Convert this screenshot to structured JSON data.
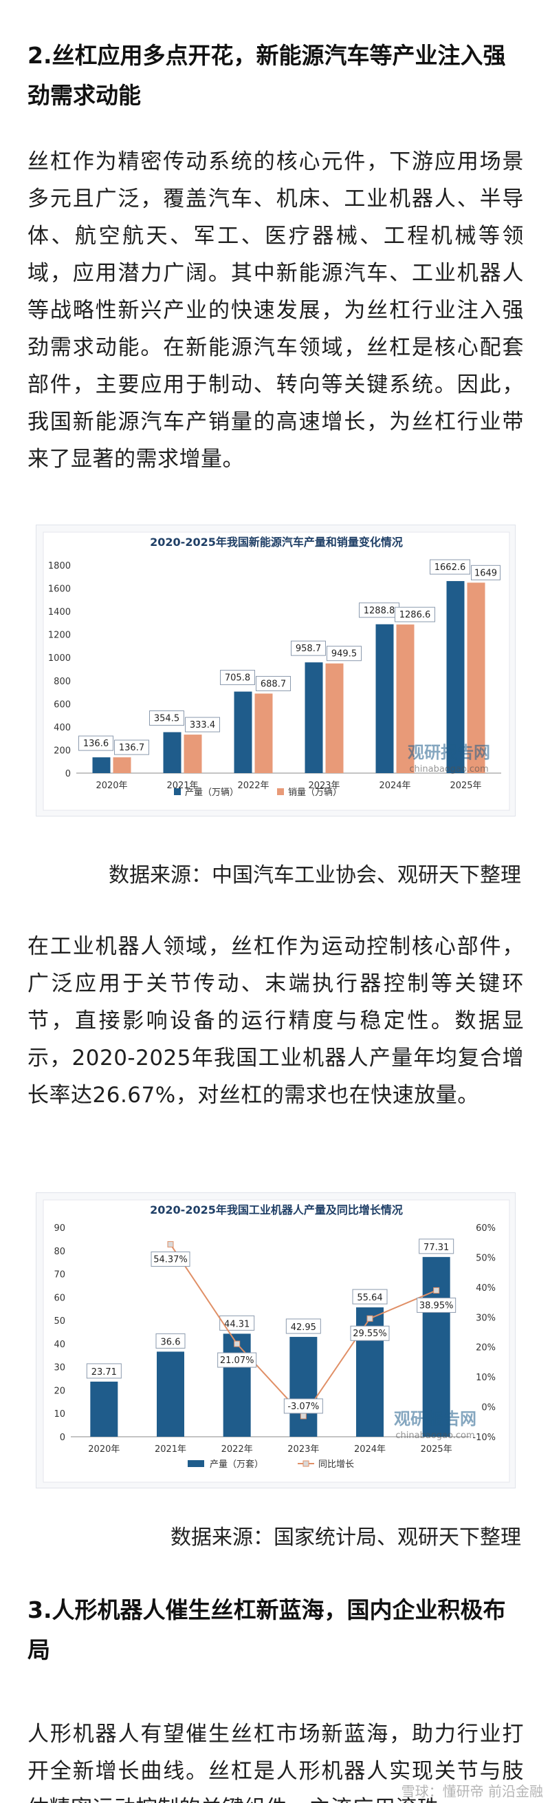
{
  "section2": {
    "heading": "2.丝杠应用多点开花，新能源汽车等产业注入强劲需求动能",
    "para1": "丝杠作为精密传动系统的核心元件，下游应用场景多元且广泛，覆盖汽车、机床、工业机器人、半导体、航空航天、军工、医疗器械、工程机械等领域，应用潜力广阔。其中新能源汽车、工业机器人等战略性新兴产业的快速发展，为丝杠行业注入强劲需求动能。在新能源汽车领域，丝杠是核心配套部件，主要应用于制动、转向等关键系统。因此，我国新能源汽车产销量的高速增长，为丝杠行业带来了显著的需求增量。",
    "source1": "数据来源：中国汽车工业协会、观研天下整理",
    "para2": "在工业机器人领域，丝杠作为运动控制核心部件，广泛应用于关节传动、末端执行器控制等关键环节，直接影响设备的运行精度与稳定性。数据显示，2020-2025年我国工业机器人产量年均复合增长率达26.67%，对丝杠的需求也在快速放量。",
    "source2": "数据来源：国家统计局、观研天下整理"
  },
  "section3": {
    "heading": "3.人形机器人催生丝杠新蓝海，国内企业积极布局",
    "para1": "人形机器人有望催生丝杠市场新蓝海，助力行业打开全新增长曲线。丝杠是人形机器人实现关节与肢体精密运动控制的关键组件，主流应用滚珠"
  },
  "watermark": {
    "brand": "观研报告网",
    "domain": "chinabaogao.com",
    "footer": "雪球：懂研帝 前沿金融"
  },
  "colors": {
    "primary": "#1f5c8b",
    "secondary": "#e89a78",
    "line": "#e08f66"
  },
  "chart_data": [
    {
      "type": "bar",
      "title": "2020-2025年我国新能源汽车产量和销量变化情况",
      "categories": [
        "2020年",
        "2021年",
        "2022年",
        "2023年",
        "2024年",
        "2025年"
      ],
      "series": [
        {
          "name": "产量（万辆）",
          "values": [
            136.6,
            354.5,
            705.8,
            958.7,
            1288.8,
            1662.6
          ]
        },
        {
          "name": "销量（万辆）",
          "values": [
            136.7,
            333.4,
            688.7,
            949.5,
            1286.6,
            1649
          ]
        }
      ],
      "value_labels": [
        [
          "136.6",
          "354.5",
          "705.8",
          "958.7",
          "1288.8",
          "1662.6"
        ],
        [
          "136.7",
          "333.4",
          "688.7",
          "949.5",
          "1286.6",
          "1649"
        ]
      ],
      "yticks": [
        "0",
        "200",
        "400",
        "600",
        "800",
        "1000",
        "1200",
        "1400",
        "1600",
        "1800"
      ],
      "ylim": [
        0,
        1800
      ],
      "grid": false,
      "legend": "bottom-center"
    },
    {
      "type": "bar",
      "title": "2020-2025年我国工业机器人产量及同比增长情况",
      "categories": [
        "2020年",
        "2021年",
        "2022年",
        "2023年",
        "2024年",
        "2025年"
      ],
      "series": [
        {
          "name": "产量（万套）",
          "values": [
            23.71,
            36.6,
            44.31,
            42.95,
            55.64,
            77.31
          ],
          "kind": "bar"
        },
        {
          "name": "同比增长",
          "values": [
            null,
            54.37,
            21.07,
            -3.07,
            29.55,
            38.95
          ],
          "kind": "line",
          "axis": "right"
        }
      ],
      "bar_labels": [
        "23.71",
        "36.6",
        "44.31",
        "42.95",
        "55.64",
        "77.31"
      ],
      "line_labels": [
        "",
        "54.37%",
        "21.07%",
        "-3.07%",
        "29.55%",
        "38.95%"
      ],
      "yticks_left": [
        "0",
        "10",
        "20",
        "30",
        "40",
        "50",
        "60",
        "70",
        "80",
        "90"
      ],
      "ylim_left": [
        0,
        90
      ],
      "yticks_right": [
        "-10%",
        "0%",
        "10%",
        "20%",
        "30%",
        "40%",
        "50%",
        "60%"
      ],
      "ylim_right": [
        -10,
        60
      ],
      "grid": false,
      "legend": "bottom-center"
    }
  ]
}
